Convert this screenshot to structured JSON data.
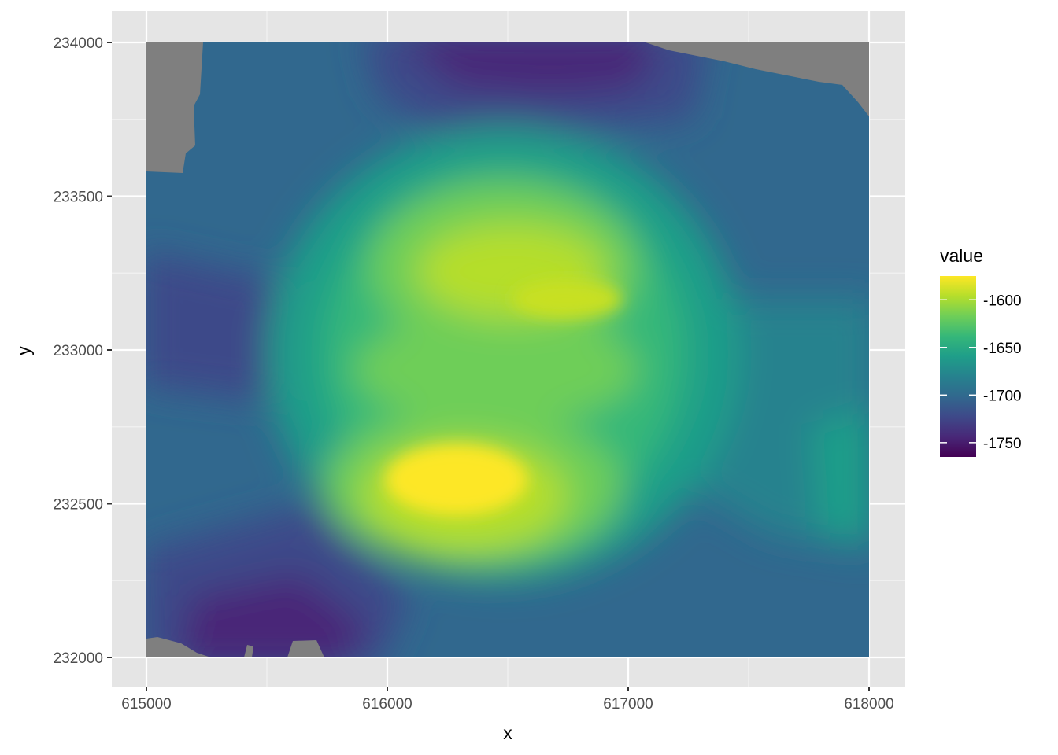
{
  "chart_data": {
    "type": "heatmap",
    "title": "",
    "xlabel": "x",
    "ylabel": "y",
    "xlim": [
      614860,
      618150
    ],
    "ylim": [
      231910,
      234100
    ],
    "raster_extent": {
      "x": [
        615000,
        618000
      ],
      "y": [
        232000,
        234000
      ]
    },
    "x_major_ticks": [
      615000,
      616000,
      617000,
      618000
    ],
    "x_tick_labels": [
      "615000",
      "616000",
      "617000",
      "618000"
    ],
    "x_minor_ticks": [
      615500,
      616500,
      617500
    ],
    "y_major_ticks": [
      232000,
      232500,
      233000,
      233500,
      234000
    ],
    "y_tick_labels": [
      "232000",
      "232500",
      "233000",
      "233500",
      "234000"
    ],
    "y_minor_ticks": [
      232250,
      232750,
      233250,
      233750
    ],
    "grid": true,
    "panel_background": "#e5e5e5",
    "na_color": "#7f7f7f",
    "legend": {
      "title": "value",
      "position": "right",
      "colormap": "viridis",
      "range": [
        -1765,
        -1575
      ],
      "breaks": [
        -1600,
        -1650,
        -1700,
        -1750
      ],
      "labels": [
        "-1600",
        "-1650",
        "-1700",
        "-1750"
      ],
      "stops": [
        "#FDE725",
        "#B5DE2B",
        "#6ECE58",
        "#35B779",
        "#1F9E89",
        "#26828E",
        "#31688E",
        "#3E4989",
        "#482878",
        "#440154"
      ]
    },
    "value_summary": {
      "max_region": "bright yellow peak near x 616100-616500, y 232450-232650 (about -1575)",
      "plateau": "yellow-green plateau near x 616100-616900, y 233000-233400 (about -1605)",
      "low_regions": "dark purple lows along the top edge near x 616000-617300 and the bottom-left near x 615200-616000 (about -1750 to -1765)",
      "na_regions": "grey no-data corners at top-left, top-right and bottom-left edges"
    }
  }
}
